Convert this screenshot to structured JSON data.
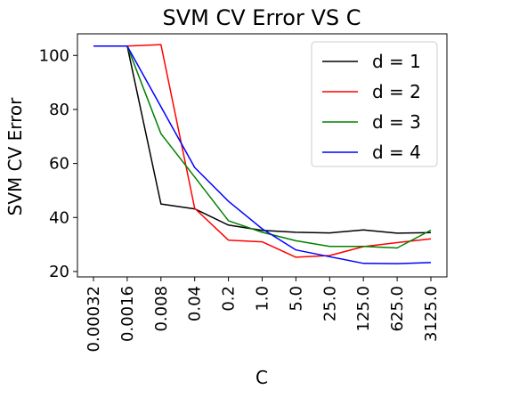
{
  "chart_data": {
    "type": "line",
    "title": "SVM CV Error VS C",
    "xlabel": "C",
    "ylabel": "SVM CV Error",
    "categories": [
      "0.00032",
      "0.0016",
      "0.008",
      "0.04",
      "0.2",
      "1.0",
      "5.0",
      "25.0",
      "125.0",
      "625.0",
      "3125.0"
    ],
    "yticks": [
      20,
      40,
      60,
      80,
      100
    ],
    "ylim": [
      18,
      108
    ],
    "grid": false,
    "legend_position": "top-right",
    "series": [
      {
        "name": "d = 1",
        "color": "#000000",
        "values": [
          103.5,
          103.5,
          45.0,
          43.2,
          37.2,
          35.2,
          34.5,
          34.3,
          35.4,
          34.2,
          34.4
        ]
      },
      {
        "name": "d = 2",
        "color": "#ff0000",
        "values": [
          103.5,
          103.5,
          104.0,
          43.4,
          31.6,
          31.0,
          25.3,
          25.9,
          29.2,
          30.7,
          32.1
        ]
      },
      {
        "name": "d = 3",
        "color": "#008000",
        "values": [
          103.5,
          103.5,
          71.0,
          55.0,
          38.8,
          34.5,
          31.4,
          29.3,
          29.3,
          28.7,
          35.3
        ]
      },
      {
        "name": "d = 4",
        "color": "#0000ff",
        "values": [
          103.5,
          103.5,
          81.0,
          58.5,
          46.0,
          35.8,
          28.0,
          25.5,
          23.0,
          22.9,
          23.3
        ]
      }
    ]
  }
}
